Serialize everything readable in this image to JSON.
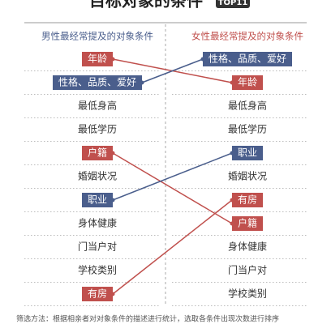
{
  "header": {
    "title": "目标对象的条件",
    "badge": "TOP11"
  },
  "columns": [
    {
      "heading": "男性最经常提及的对象条件",
      "color": "#4a5e8c",
      "items": [
        {
          "label": "年龄",
          "color": "#c0504d"
        },
        {
          "label": "性格、品质、爱好",
          "color": "#4a5e8c"
        },
        {
          "label": "最低身高"
        },
        {
          "label": "最低学历"
        },
        {
          "label": "户籍",
          "color": "#c0504d"
        },
        {
          "label": "婚姻状况"
        },
        {
          "label": "职业",
          "color": "#4a5e8c"
        },
        {
          "label": "身体健康"
        },
        {
          "label": "门当户对"
        },
        {
          "label": "学校类别"
        },
        {
          "label": "有房",
          "color": "#c0504d"
        }
      ]
    },
    {
      "heading": "女性最经常提及的对象条件",
      "color": "#c0504d",
      "items": [
        {
          "label": "性格、品质、爱好",
          "color": "#4a5e8c"
        },
        {
          "label": "年龄",
          "color": "#c0504d"
        },
        {
          "label": "最低身高"
        },
        {
          "label": "最低学历"
        },
        {
          "label": "职业",
          "color": "#4a5e8c"
        },
        {
          "label": "婚姻状况"
        },
        {
          "label": "有房",
          "color": "#c0504d"
        },
        {
          "label": "户籍",
          "color": "#c0504d"
        },
        {
          "label": "身体健康"
        },
        {
          "label": "门当户对"
        },
        {
          "label": "学校类别"
        }
      ]
    }
  ],
  "note": "筛选方法：根据相亲者对对象条件的描述进行统计，选取各条件出现次数进行排序"
}
